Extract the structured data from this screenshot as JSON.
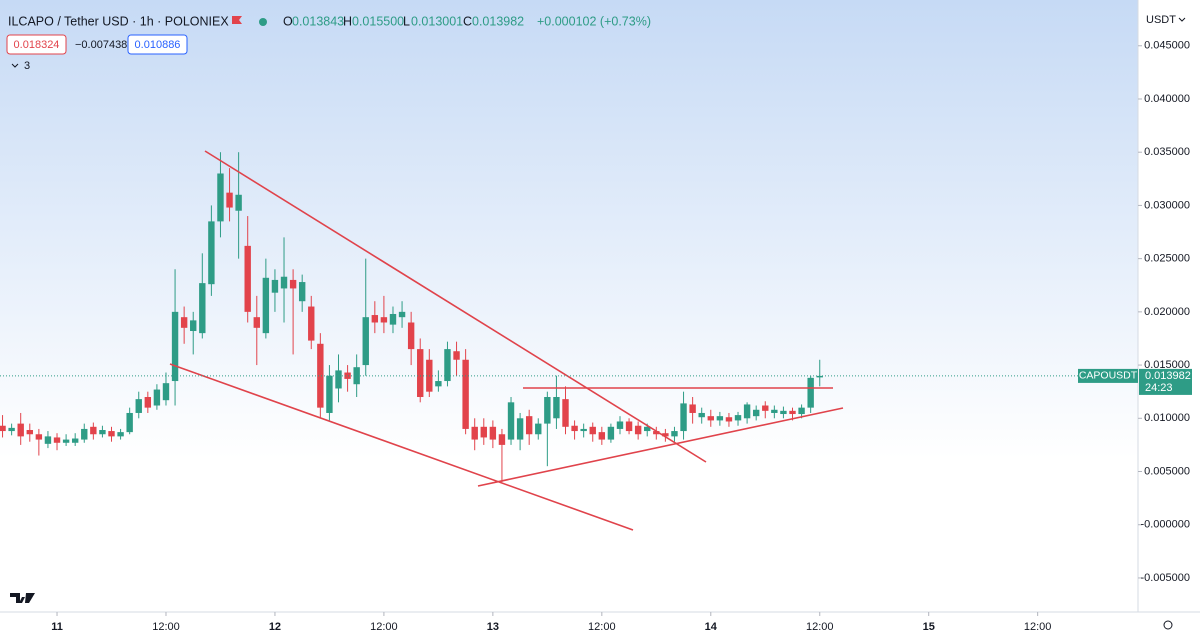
{
  "header": {
    "symbol": "ILCAPO / Tether USD · 1h · POLONIEX",
    "ohlc": [
      {
        "label": "O",
        "value": "0.013843"
      },
      {
        "label": "H",
        "value": "0.015500"
      },
      {
        "label": "L",
        "value": "0.013001"
      },
      {
        "label": "C",
        "value": "0.013982"
      }
    ],
    "change": "+0.000102 (+0.73%)",
    "bid": "0.018324",
    "spread": "−0.007438",
    "ask": "0.010886",
    "indicators": "3",
    "currency": "USDT"
  },
  "chart_data": {
    "type": "candlestick",
    "up_color": "#2e9c86",
    "down_color": "#e2434b",
    "grid": false,
    "x": [
      -6,
      -5,
      -4,
      -3,
      -2,
      -1,
      0,
      1,
      2,
      3,
      4,
      5,
      6,
      7,
      8,
      9,
      10,
      11,
      12,
      13,
      14,
      15,
      16,
      17,
      18,
      19,
      20,
      21,
      22,
      23,
      24,
      25,
      26,
      27,
      28,
      29,
      30,
      31,
      32,
      33,
      34,
      35,
      36,
      37,
      38,
      39,
      40,
      41,
      42,
      43,
      44,
      45,
      46,
      47,
      48,
      49,
      50,
      51,
      52,
      53,
      54,
      55,
      56,
      57,
      58,
      59,
      60,
      61,
      62,
      63,
      64,
      65,
      66,
      67,
      68,
      69,
      70,
      71,
      72,
      73,
      74,
      75,
      76,
      77,
      78,
      79,
      80,
      81,
      82,
      83,
      84
    ],
    "open": [
      0.0093,
      0.0088,
      0.0095,
      0.0089,
      0.0085,
      0.0076,
      0.0082,
      0.0077,
      0.0077,
      0.008,
      0.0092,
      0.0085,
      0.0088,
      0.0083,
      0.0087,
      0.0105,
      0.012,
      0.0112,
      0.0117,
      0.0135,
      0.0195,
      0.0182,
      0.018,
      0.0226,
      0.0285,
      0.0312,
      0.0295,
      0.0262,
      0.0195,
      0.018,
      0.0218,
      0.0222,
      0.023,
      0.021,
      0.0205,
      0.017,
      0.0105,
      0.0128,
      0.0143,
      0.0132,
      0.015,
      0.0197,
      0.0195,
      0.0188,
      0.0195,
      0.019,
      0.0165,
      0.0155,
      0.013,
      0.0135,
      0.0163,
      0.0155,
      0.0092,
      0.0092,
      0.0092,
      0.0085,
      0.008,
      0.008,
      0.0102,
      0.0085,
      0.0095,
      0.01,
      0.0118,
      0.0093,
      0.0088,
      0.0092,
      0.0087,
      0.008,
      0.009,
      0.0097,
      0.0093,
      0.0088,
      0.0088,
      0.0086,
      0.0083,
      0.0088,
      0.0113,
      0.0101,
      0.0102,
      0.0098,
      0.0101,
      0.0098,
      0.01,
      0.0102,
      0.0112,
      0.0105,
      0.0104,
      0.0107,
      0.0104,
      0.011,
      0.013843
    ],
    "high": [
      0.0103,
      0.0095,
      0.0105,
      0.0095,
      0.009,
      0.0088,
      0.0086,
      0.0085,
      0.0086,
      0.0095,
      0.0096,
      0.0093,
      0.0092,
      0.009,
      0.011,
      0.0125,
      0.0125,
      0.0132,
      0.0143,
      0.024,
      0.0205,
      0.02,
      0.0255,
      0.03,
      0.035,
      0.0335,
      0.035,
      0.029,
      0.0215,
      0.025,
      0.024,
      0.027,
      0.024,
      0.0235,
      0.0215,
      0.018,
      0.015,
      0.016,
      0.015,
      0.016,
      0.025,
      0.021,
      0.0215,
      0.0205,
      0.021,
      0.02,
      0.0175,
      0.0165,
      0.0145,
      0.0172,
      0.0172,
      0.0165,
      0.01,
      0.01,
      0.0098,
      0.009,
      0.012,
      0.0105,
      0.0108,
      0.01,
      0.0125,
      0.014,
      0.013,
      0.0098,
      0.0095,
      0.0096,
      0.0092,
      0.0095,
      0.0102,
      0.01,
      0.0097,
      0.0095,
      0.0092,
      0.009,
      0.0092,
      0.0125,
      0.012,
      0.011,
      0.0108,
      0.0106,
      0.0105,
      0.0106,
      0.0115,
      0.0112,
      0.0116,
      0.0112,
      0.0111,
      0.011,
      0.0113,
      0.014,
      0.0155
    ],
    "low": [
      0.0082,
      0.0084,
      0.0075,
      0.0078,
      0.0065,
      0.0072,
      0.007,
      0.0074,
      0.0074,
      0.0077,
      0.008,
      0.0082,
      0.0078,
      0.008,
      0.0085,
      0.01,
      0.0105,
      0.0108,
      0.0112,
      0.0112,
      0.017,
      0.016,
      0.0175,
      0.0215,
      0.027,
      0.0285,
      0.025,
      0.019,
      0.015,
      0.0175,
      0.02,
      0.019,
      0.016,
      0.02,
      0.0165,
      0.01,
      0.0098,
      0.0115,
      0.0125,
      0.012,
      0.014,
      0.018,
      0.018,
      0.018,
      0.0185,
      0.015,
      0.0115,
      0.012,
      0.0125,
      0.013,
      0.014,
      0.0085,
      0.007,
      0.0075,
      0.0072,
      0.004,
      0.0075,
      0.007,
      0.0075,
      0.008,
      0.0055,
      0.009,
      0.0085,
      0.008,
      0.0082,
      0.0078,
      0.0075,
      0.0077,
      0.0085,
      0.0085,
      0.008,
      0.0083,
      0.008,
      0.0078,
      0.0078,
      0.008,
      0.0095,
      0.0095,
      0.0092,
      0.0093,
      0.0092,
      0.0093,
      0.0095,
      0.0098,
      0.01,
      0.01,
      0.01,
      0.0098,
      0.01,
      0.0105,
      0.013001
    ],
    "close": [
      0.0088,
      0.0091,
      0.0083,
      0.0085,
      0.008,
      0.0083,
      0.0077,
      0.008,
      0.0081,
      0.009,
      0.0085,
      0.0089,
      0.0083,
      0.0087,
      0.0105,
      0.0118,
      0.011,
      0.0127,
      0.0133,
      0.02,
      0.0185,
      0.0192,
      0.0227,
      0.0285,
      0.033,
      0.0298,
      0.031,
      0.02,
      0.0185,
      0.0232,
      0.023,
      0.0233,
      0.0222,
      0.0228,
      0.0173,
      0.011,
      0.014,
      0.0145,
      0.0137,
      0.0148,
      0.0195,
      0.019,
      0.019,
      0.0198,
      0.02,
      0.0165,
      0.012,
      0.0125,
      0.0135,
      0.0165,
      0.0155,
      0.009,
      0.008,
      0.0082,
      0.008,
      0.0075,
      0.0115,
      0.01,
      0.0085,
      0.0095,
      0.012,
      0.012,
      0.0092,
      0.0088,
      0.009,
      0.0085,
      0.008,
      0.0092,
      0.0097,
      0.0088,
      0.0085,
      0.0092,
      0.0085,
      0.0083,
      0.0088,
      0.0114,
      0.0105,
      0.0105,
      0.0098,
      0.0102,
      0.0097,
      0.0103,
      0.0113,
      0.0108,
      0.0107,
      0.0108,
      0.0107,
      0.0104,
      0.011,
      0.0138,
      0.013982
    ],
    "xlim": [
      -6.28,
      119.05
    ],
    "xticks": [
      {
        "value": 0,
        "label": "11"
      },
      {
        "value": 12,
        "label": "12:00"
      },
      {
        "value": 24,
        "label": "12"
      },
      {
        "value": 36,
        "label": "12:00"
      },
      {
        "value": 48,
        "label": "13"
      },
      {
        "value": 60,
        "label": "12:00"
      },
      {
        "value": 72,
        "label": "14"
      },
      {
        "value": 84,
        "label": "12:00"
      },
      {
        "value": 96,
        "label": "15"
      },
      {
        "value": 108,
        "label": "12:00"
      }
    ],
    "ylim": [
      -0.0082,
      0.0493
    ],
    "yticks": [
      {
        "value": 0.045,
        "label": "0.045000"
      },
      {
        "value": 0.04,
        "label": "0.040000"
      },
      {
        "value": 0.035,
        "label": "0.035000"
      },
      {
        "value": 0.03,
        "label": "0.030000"
      },
      {
        "value": 0.025,
        "label": "0.025000"
      },
      {
        "value": 0.02,
        "label": "0.020000"
      },
      {
        "value": 0.015,
        "label": "0.015000"
      },
      {
        "value": 0.01,
        "label": "0.010000"
      },
      {
        "value": 0.005,
        "label": "0.005000"
      },
      {
        "value": 0,
        "label": "-0.000000"
      },
      {
        "value": -0.005,
        "label": "-0.005000"
      }
    ],
    "last_price": {
      "name": "CAPOUSDT",
      "value": 0.013982,
      "countdown": "24:23"
    }
  }
}
